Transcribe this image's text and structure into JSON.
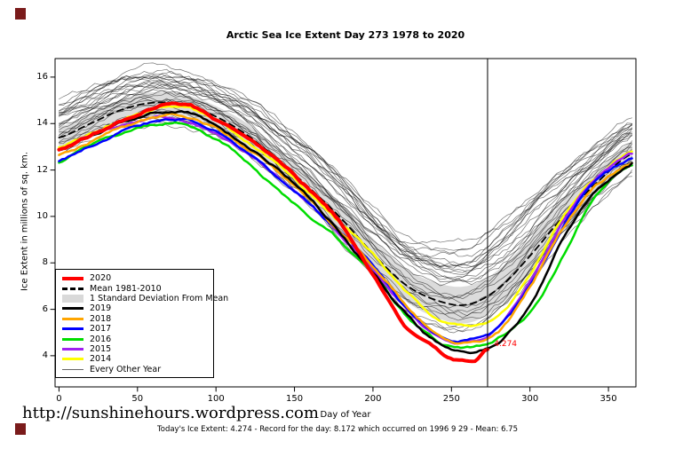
{
  "page": {
    "corner_marker_color": "#7a1b1b"
  },
  "chart": {
    "title": "Arctic Sea Ice Extent Day 273 1978 to 2020",
    "xlabel": "Day of Year",
    "ylabel": "Ice Extent in millions of sq. km.",
    "footer_url": "http://sunshinehours.wordpress.com",
    "caption": "Today's Ice Extent: 4.274 - Record for the day: 8.172 which occurred on 1996 9 29 - Mean: 6.75",
    "annotation": {
      "text": "4.274",
      "day": 276,
      "value": 4.274,
      "color": "#ff0000"
    }
  },
  "chart_data": {
    "type": "line",
    "title": "Arctic Sea Ice Extent Day 273 1978 to 2020",
    "xlabel": "Day of Year",
    "ylabel": "Ice Extent in millions of sq. km.",
    "x_ticks": [
      0,
      50,
      100,
      150,
      200,
      250,
      300,
      350
    ],
    "y_ticks": [
      4,
      6,
      8,
      10,
      12,
      14,
      16
    ],
    "xlim": [
      -2.5,
      367.5
    ],
    "ylim": [
      2.66,
      16.8
    ],
    "vline_day": 273,
    "days": [
      0,
      20,
      40,
      60,
      80,
      100,
      120,
      140,
      160,
      180,
      200,
      220,
      240,
      260,
      280,
      300,
      320,
      340,
      365
    ],
    "mean_1981_2010": [
      13.4,
      14.0,
      14.6,
      14.9,
      14.8,
      14.3,
      13.5,
      12.4,
      11.2,
      9.9,
      8.4,
      7.1,
      6.4,
      6.2,
      6.9,
      8.3,
      9.9,
      11.3,
      12.7
    ],
    "std_dev": [
      0.45,
      0.45,
      0.45,
      0.45,
      0.45,
      0.45,
      0.5,
      0.5,
      0.55,
      0.6,
      0.65,
      0.7,
      0.75,
      0.8,
      0.8,
      0.75,
      0.65,
      0.55,
      0.5
    ],
    "band_color": "#d9d9d9",
    "other_year_color": "#000000",
    "other_year_levels": [
      1.0,
      0.97,
      0.93,
      0.9,
      0.87,
      0.83,
      0.8,
      0.77,
      0.73,
      0.7,
      0.65,
      0.6,
      0.55,
      0.5,
      0.44,
      0.38,
      0.32,
      0.26,
      0.2,
      0.13,
      0.06,
      0.0,
      -0.07,
      -0.14,
      -0.2,
      -0.27,
      -0.33,
      -0.4,
      -0.47,
      -0.55
    ],
    "series": [
      {
        "name": "2014",
        "color": "#ffff00",
        "width": 2.5,
        "days": [
          0,
          20,
          40,
          60,
          80,
          100,
          120,
          140,
          160,
          180,
          200,
          220,
          240,
          260,
          280,
          300,
          320,
          340,
          365
        ],
        "values": [
          13.0,
          13.6,
          14.2,
          14.6,
          14.7,
          14.1,
          13.2,
          12.2,
          11.0,
          9.7,
          8.4,
          6.9,
          5.6,
          5.2,
          5.7,
          7.5,
          9.9,
          11.6,
          12.8
        ]
      },
      {
        "name": "2015",
        "color": "#a020f0",
        "width": 2.5,
        "days": [
          0,
          20,
          40,
          60,
          80,
          100,
          120,
          140,
          160,
          180,
          200,
          220,
          240,
          260,
          280,
          300,
          320,
          340,
          365
        ],
        "values": [
          12.9,
          13.5,
          14.0,
          14.3,
          14.2,
          13.6,
          12.7,
          11.7,
          10.5,
          9.1,
          7.7,
          6.1,
          4.9,
          4.6,
          5.2,
          7.1,
          9.7,
          11.6,
          12.7
        ]
      },
      {
        "name": "2016",
        "color": "#00dd00",
        "width": 2.5,
        "days": [
          0,
          20,
          40,
          60,
          80,
          100,
          120,
          140,
          160,
          180,
          200,
          220,
          240,
          260,
          280,
          300,
          320,
          340,
          365
        ],
        "values": [
          12.3,
          13.0,
          13.5,
          13.9,
          14.0,
          13.3,
          12.3,
          11.1,
          10.0,
          8.9,
          7.6,
          5.8,
          4.6,
          4.3,
          4.8,
          5.9,
          8.2,
          10.8,
          12.2
        ]
      },
      {
        "name": "2017",
        "color": "#0000ff",
        "width": 2.5,
        "days": [
          0,
          20,
          40,
          60,
          80,
          100,
          120,
          140,
          160,
          180,
          200,
          220,
          240,
          260,
          280,
          300,
          320,
          340,
          365
        ],
        "values": [
          12.4,
          13.1,
          13.7,
          14.1,
          14.2,
          13.7,
          12.8,
          11.7,
          10.5,
          9.2,
          7.8,
          6.1,
          4.9,
          4.7,
          5.2,
          7.0,
          9.5,
          11.5,
          12.5
        ]
      },
      {
        "name": "2018",
        "color": "#ffa500",
        "width": 2.5,
        "days": [
          0,
          20,
          40,
          60,
          80,
          100,
          120,
          140,
          160,
          180,
          200,
          220,
          240,
          260,
          280,
          300,
          320,
          340,
          365
        ],
        "values": [
          12.6,
          13.2,
          13.8,
          14.2,
          14.3,
          13.8,
          13.0,
          11.9,
          10.7,
          9.3,
          7.9,
          6.3,
          5.0,
          4.6,
          5.0,
          6.9,
          9.4,
          11.2,
          12.3
        ]
      },
      {
        "name": "2019",
        "color": "#000000",
        "width": 2.5,
        "days": [
          0,
          20,
          40,
          60,
          80,
          100,
          120,
          140,
          160,
          180,
          200,
          220,
          240,
          260,
          280,
          300,
          320,
          340,
          365
        ],
        "values": [
          12.9,
          13.4,
          13.9,
          14.4,
          14.5,
          13.9,
          13.0,
          12.0,
          10.8,
          9.3,
          7.6,
          5.9,
          4.6,
          4.2,
          4.6,
          6.2,
          8.9,
          11.0,
          12.3
        ]
      },
      {
        "name": "2020",
        "color": "#ff0000",
        "width": 4,
        "days": [
          0,
          20,
          40,
          60,
          80,
          100,
          120,
          140,
          160,
          180,
          200,
          220,
          240,
          255,
          265,
          273
        ],
        "values": [
          12.9,
          13.5,
          14.1,
          14.7,
          14.9,
          14.2,
          13.4,
          12.5,
          11.2,
          9.7,
          7.5,
          5.3,
          4.2,
          3.8,
          3.75,
          4.274
        ]
      }
    ],
    "legend": [
      {
        "label": "2020",
        "swatch": "line",
        "color": "#ff0000",
        "thickness": 4
      },
      {
        "label": "Mean 1981-2010",
        "swatch": "dashed",
        "color": "#000000",
        "thickness": 3
      },
      {
        "label": "1 Standard Deviation From Mean",
        "swatch": "band",
        "color": "#d9d9d9",
        "thickness": 9
      },
      {
        "label": "2019",
        "swatch": "line",
        "color": "#000000",
        "thickness": 3
      },
      {
        "label": "2018",
        "swatch": "line",
        "color": "#ffa500",
        "thickness": 3
      },
      {
        "label": "2017",
        "swatch": "line",
        "color": "#0000ff",
        "thickness": 3
      },
      {
        "label": "2016",
        "swatch": "line",
        "color": "#00dd00",
        "thickness": 3
      },
      {
        "label": "2015",
        "swatch": "line",
        "color": "#a020f0",
        "thickness": 3
      },
      {
        "label": "2014",
        "swatch": "line",
        "color": "#ffff00",
        "thickness": 3
      },
      {
        "label": "Every Other Year",
        "swatch": "line",
        "color": "#666666",
        "thickness": 1
      }
    ]
  }
}
